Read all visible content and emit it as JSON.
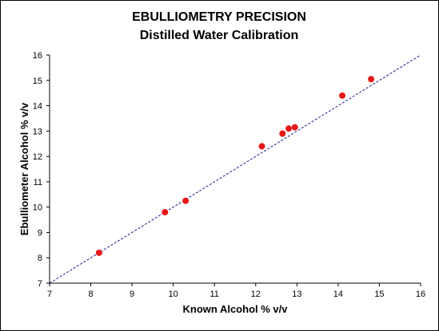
{
  "chart_data": {
    "type": "scatter",
    "title": "EBULLIOMETRY PRECISION",
    "subtitle": "Distilled Water Calibration",
    "xlabel": "Known Alcohol  % v/v",
    "ylabel": "Ebulliometer Alcohol  % v/v",
    "xlim": [
      7,
      16
    ],
    "ylim": [
      7,
      16
    ],
    "xticks": [
      7,
      8,
      9,
      10,
      11,
      12,
      13,
      14,
      15,
      16
    ],
    "yticks": [
      7,
      8,
      9,
      10,
      11,
      12,
      13,
      14,
      15,
      16
    ],
    "grid": false,
    "legend": "none",
    "series": [
      {
        "color": "#e81818",
        "points": [
          {
            "x": 8.2,
            "y": 8.2
          },
          {
            "x": 9.8,
            "y": 9.8
          },
          {
            "x": 10.3,
            "y": 10.25
          },
          {
            "x": 12.15,
            "y": 12.4
          },
          {
            "x": 12.65,
            "y": 12.9
          },
          {
            "x": 12.8,
            "y": 13.1
          },
          {
            "x": 12.95,
            "y": 13.15
          },
          {
            "x": 14.1,
            "y": 14.4
          },
          {
            "x": 14.8,
            "y": 15.05
          }
        ]
      }
    ],
    "reference_line": {
      "from": [
        7,
        7
      ],
      "to": [
        16,
        16
      ],
      "style": "dashed",
      "color": "#1a1a8c"
    }
  }
}
